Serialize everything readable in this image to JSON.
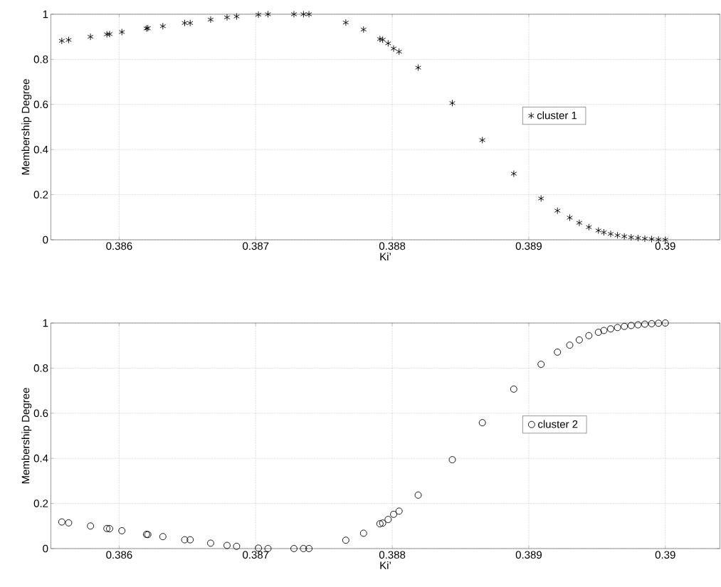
{
  "chart_data": [
    {
      "type": "scatter",
      "xlabel": "Ki’",
      "ylabel": "Membership Degree",
      "xlim": [
        0.3855,
        0.3904
      ],
      "ylim": [
        0,
        1
      ],
      "xticks": [
        0.386,
        0.387,
        0.388,
        0.389,
        0.39
      ],
      "yticks": [
        0,
        0.2,
        0.4,
        0.6,
        0.8,
        1
      ],
      "grid": true,
      "legend": "right",
      "marker": "cross",
      "series": [
        {
          "name": "cluster 1",
          "color": "#000000",
          "x": [
            0.38558,
            0.38563,
            0.38579,
            0.38591,
            0.38593,
            0.38602,
            0.3862,
            0.38621,
            0.38632,
            0.38648,
            0.38652,
            0.38667,
            0.38679,
            0.38686,
            0.38702,
            0.38709,
            0.38728,
            0.38735,
            0.38739,
            0.38766,
            0.38779,
            0.38791,
            0.38793,
            0.38797,
            0.38801,
            0.38805,
            0.38819,
            0.38844,
            0.38866,
            0.38889,
            0.38909,
            0.38921,
            0.3893,
            0.38937,
            0.38944,
            0.38951,
            0.38955,
            0.3896,
            0.38965,
            0.3897,
            0.38975,
            0.3898,
            0.38985,
            0.3899,
            0.38995,
            0.39
          ],
          "values": [
            0.882,
            0.886,
            0.9,
            0.911,
            0.912,
            0.921,
            0.937,
            0.938,
            0.947,
            0.961,
            0.961,
            0.976,
            0.986,
            0.99,
            0.998,
            1.0,
            1.0,
            1.0,
            1.0,
            0.963,
            0.932,
            0.89,
            0.887,
            0.871,
            0.848,
            0.834,
            0.763,
            0.606,
            0.442,
            0.293,
            0.183,
            0.129,
            0.098,
            0.075,
            0.056,
            0.041,
            0.033,
            0.026,
            0.02,
            0.015,
            0.011,
            0.008,
            0.005,
            0.003,
            0.001,
            0.0
          ]
        }
      ]
    },
    {
      "type": "scatter",
      "xlabel": "Ki’",
      "ylabel": "Membership Degree",
      "xlim": [
        0.3855,
        0.3904
      ],
      "ylim": [
        0,
        1
      ],
      "xticks": [
        0.386,
        0.387,
        0.388,
        0.389,
        0.39
      ],
      "yticks": [
        0,
        0.2,
        0.4,
        0.6,
        0.8,
        1
      ],
      "grid": true,
      "legend": "right",
      "marker": "circle",
      "series": [
        {
          "name": "cluster 2",
          "color": "#000000",
          "x": [
            0.38558,
            0.38563,
            0.38579,
            0.38591,
            0.38593,
            0.38602,
            0.3862,
            0.38621,
            0.38632,
            0.38648,
            0.38652,
            0.38667,
            0.38679,
            0.38686,
            0.38702,
            0.38709,
            0.38728,
            0.38735,
            0.38739,
            0.38766,
            0.38779,
            0.38791,
            0.38793,
            0.38797,
            0.38801,
            0.38805,
            0.38819,
            0.38844,
            0.38866,
            0.38889,
            0.38909,
            0.38921,
            0.3893,
            0.38937,
            0.38944,
            0.38951,
            0.38955,
            0.3896,
            0.38965,
            0.3897,
            0.38975,
            0.3898,
            0.38985,
            0.3899,
            0.38995,
            0.39
          ],
          "values": [
            0.118,
            0.114,
            0.1,
            0.089,
            0.088,
            0.079,
            0.063,
            0.062,
            0.053,
            0.039,
            0.039,
            0.024,
            0.014,
            0.01,
            0.002,
            0.0,
            0.0,
            0.0,
            0.0,
            0.037,
            0.068,
            0.11,
            0.113,
            0.129,
            0.152,
            0.166,
            0.237,
            0.394,
            0.558,
            0.707,
            0.817,
            0.871,
            0.902,
            0.925,
            0.944,
            0.959,
            0.967,
            0.974,
            0.98,
            0.985,
            0.989,
            0.992,
            0.995,
            0.997,
            0.999,
            1.0
          ]
        }
      ]
    }
  ]
}
